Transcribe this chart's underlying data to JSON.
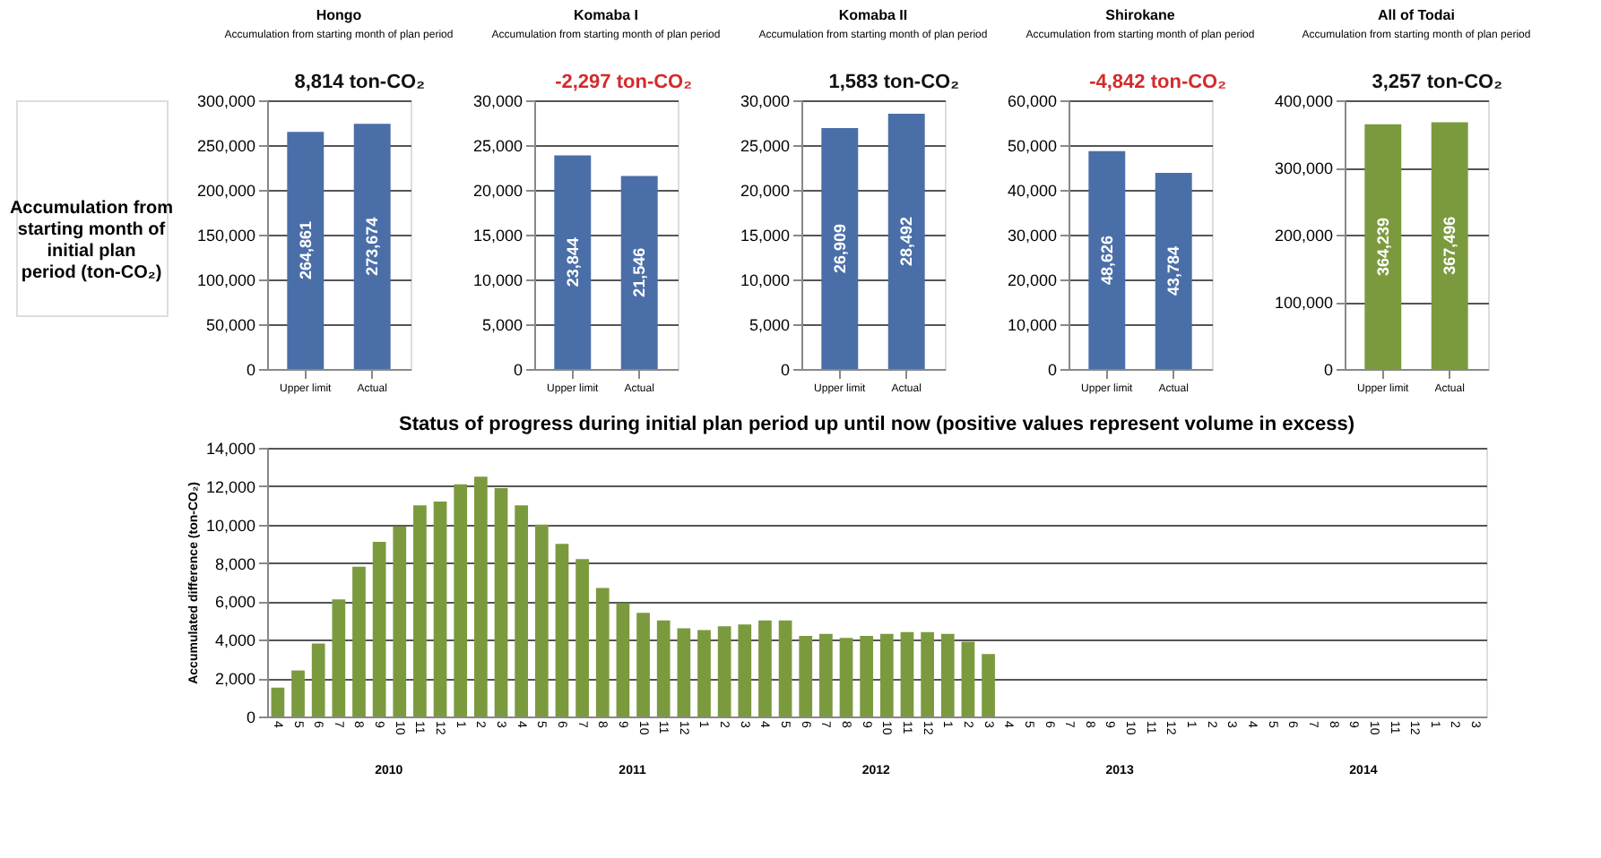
{
  "chart_data": [
    {
      "type": "bar",
      "title": "Hongo",
      "subtitle": "Accumulation from starting month of plan period",
      "annotations": [
        "8,814 ton-CO₂"
      ],
      "categories": [
        "Upper limit",
        "Actual"
      ],
      "values": [
        264861,
        273674
      ],
      "value_labels": [
        "264,861",
        "273,674"
      ],
      "color": "#4a6ea8",
      "ylim": [
        0,
        300000
      ],
      "yticks": [
        0,
        {
          "value": 50000,
          "label": "50,000"
        },
        {
          "value": 100000,
          "label": "100,000"
        },
        {
          "value": 150000,
          "label": "150,000"
        },
        {
          "value": 200000,
          "label": "200,000"
        },
        {
          "value": 250000,
          "label": "250,000"
        },
        {
          "value": 300000,
          "label": "300,000"
        }
      ],
      "grid": "y"
    },
    {
      "type": "bar",
      "title": "Komaba I",
      "subtitle": "Accumulation from starting month of plan period",
      "annotations": [
        "-2,297 ton-CO₂"
      ],
      "categories": [
        "Upper limit",
        "Actual"
      ],
      "values": [
        23844,
        21546
      ],
      "value_labels": [
        "23,844",
        "21,546"
      ],
      "color": "#4a6ea8",
      "ylim": [
        0,
        30000
      ],
      "yticks": [
        0,
        {
          "value": 5000,
          "label": "5,000"
        },
        {
          "value": 10000,
          "label": "10,000"
        },
        {
          "value": 15000,
          "label": "15,000"
        },
        {
          "value": 20000,
          "label": "20,000"
        },
        {
          "value": 25000,
          "label": "25,000"
        },
        {
          "value": 30000,
          "label": "30,000"
        }
      ],
      "grid": "y"
    },
    {
      "type": "bar",
      "title": "Komaba II",
      "subtitle": "Accumulation from starting month of plan period",
      "annotations": [
        "1,583 ton-CO₂"
      ],
      "categories": [
        "Upper limit",
        "Actual"
      ],
      "values": [
        26909,
        28492
      ],
      "value_labels": [
        "26,909",
        "28,492"
      ],
      "color": "#4a6ea8",
      "ylim": [
        0,
        30000
      ],
      "yticks": [
        0,
        {
          "value": 5000,
          "label": "5,000"
        },
        {
          "value": 10000,
          "label": "10,000"
        },
        {
          "value": 15000,
          "label": "15,000"
        },
        {
          "value": 20000,
          "label": "20,000"
        },
        {
          "value": 25000,
          "label": "25,000"
        },
        {
          "value": 30000,
          "label": "30,000"
        }
      ],
      "grid": "y"
    },
    {
      "type": "bar",
      "title": "Shirokane",
      "subtitle": "Accumulation from starting month of plan period",
      "annotations": [
        "-4,842 ton-CO₂"
      ],
      "categories": [
        "Upper limit",
        "Actual"
      ],
      "values": [
        48626,
        43784
      ],
      "value_labels": [
        "48,626",
        "43,784"
      ],
      "color": "#4a6ea8",
      "ylim": [
        0,
        60000
      ],
      "yticks": [
        0,
        {
          "value": 10000,
          "label": "10,000"
        },
        {
          "value": 20000,
          "label": "20,000"
        },
        {
          "value": 30000,
          "label": "30,000"
        },
        {
          "value": 40000,
          "label": "40,000"
        },
        {
          "value": 50000,
          "label": "50,000"
        },
        {
          "value": 60000,
          "label": "60,000"
        }
      ],
      "grid": "y"
    },
    {
      "type": "bar",
      "title": "All of Todai",
      "subtitle": "Accumulation from starting month of plan period",
      "annotations": [
        "3,257 ton-CO₂"
      ],
      "categories": [
        "Upper limit",
        "Actual"
      ],
      "values": [
        364239,
        367496
      ],
      "value_labels": [
        "364,239",
        "367,496"
      ],
      "color": "#7b9a3e",
      "ylim": [
        0,
        400000
      ],
      "yticks": [
        0,
        {
          "value": 100000,
          "label": "100,000"
        },
        {
          "value": 200000,
          "label": "200,000"
        },
        {
          "value": 300000,
          "label": "300,000"
        },
        {
          "value": 400000,
          "label": "400,000"
        }
      ],
      "grid": "y"
    },
    {
      "type": "bar",
      "title": "Status of progress during initial plan period up until now (positive values represent volume in excess)",
      "ylabel": "Accumulated difference (ton-CO₂)",
      "annotations": [
        "Accumulation from starting month of initial plan period (ton-CO₂)",
        "2010",
        "2011",
        "2012",
        "2013",
        "2014"
      ],
      "categories": [
        "4",
        "5",
        "6",
        "7",
        "8",
        "9",
        "10",
        "11",
        "12",
        "1",
        "2",
        "3",
        "4",
        "5",
        "6",
        "7",
        "8",
        "9",
        "10",
        "11",
        "12",
        "1",
        "2",
        "3",
        "4",
        "5",
        "6",
        "7",
        "8",
        "9",
        "10",
        "11",
        "12",
        "1",
        "2",
        "3",
        "4",
        "5",
        "6",
        "7",
        "8",
        "9",
        "10",
        "11",
        "12",
        "1",
        "2",
        "3",
        "4",
        "5",
        "6",
        "7",
        "8",
        "9",
        "10",
        "11",
        "12",
        "1",
        "2",
        "3"
      ],
      "values": [
        1500,
        2400,
        3800,
        6100,
        7800,
        9100,
        9900,
        11000,
        11200,
        12100,
        12500,
        11900,
        11000,
        10000,
        9000,
        8200,
        6700,
        5900,
        5400,
        5000,
        4600,
        4500,
        4700,
        4800,
        5000,
        5000,
        4200,
        4300,
        4100,
        4200,
        4300,
        4400,
        4400,
        4300,
        3900,
        3257,
        null,
        null,
        null,
        null,
        null,
        null,
        null,
        null,
        null,
        null,
        null,
        null,
        null,
        null,
        null,
        null,
        null,
        null,
        null,
        null,
        null,
        null,
        null,
        null
      ],
      "color": "#7b9a3e",
      "ylim": [
        0,
        14000
      ],
      "yticks": [
        0,
        {
          "value": 2000,
          "label": "2,000"
        },
        {
          "value": 4000,
          "label": "4,000"
        },
        {
          "value": 6000,
          "label": "6,000"
        },
        {
          "value": 8000,
          "label": "8,000"
        },
        {
          "value": 10000,
          "label": "10,000"
        },
        {
          "value": 12000,
          "label": "12,000"
        },
        {
          "value": 14000,
          "label": "14,000"
        }
      ],
      "grid": "y"
    }
  ]
}
